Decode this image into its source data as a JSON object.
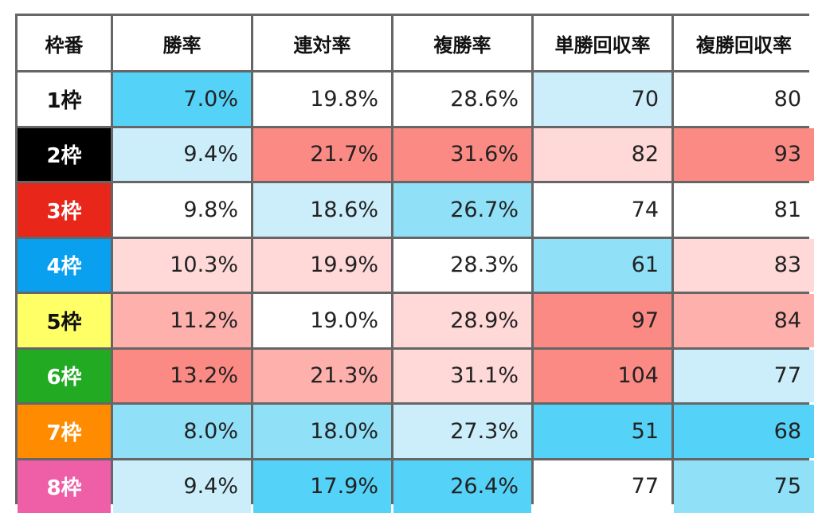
{
  "table": {
    "header": [
      "枠番",
      "勝率",
      "連対率",
      "複勝率",
      "単勝回収率",
      "複勝回収率"
    ],
    "rows": [
      [
        "1枠",
        "7.0%",
        "19.8%",
        "28.6%",
        "70",
        "80"
      ],
      [
        "2枠",
        "9.4%",
        "21.7%",
        "31.6%",
        "82",
        "93"
      ],
      [
        "3枠",
        "9.8%",
        "18.6%",
        "26.7%",
        "74",
        "81"
      ],
      [
        "4枠",
        "10.3%",
        "19.9%",
        "28.3%",
        "61",
        "83"
      ],
      [
        "5枠",
        "11.2%",
        "19.0%",
        "28.9%",
        "97",
        "84"
      ],
      [
        "6枠",
        "13.2%",
        "21.3%",
        "31.1%",
        "104",
        "77"
      ],
      [
        "7枠",
        "8.0%",
        "18.0%",
        "27.3%",
        "51",
        "68"
      ],
      [
        "8枠",
        "9.4%",
        "17.9%",
        "26.4%",
        "77",
        "75"
      ]
    ]
  }
}
